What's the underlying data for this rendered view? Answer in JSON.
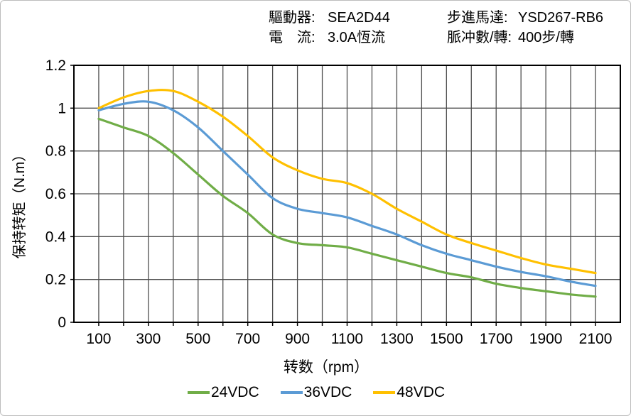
{
  "header": {
    "driver_label": "驅動器:",
    "driver_value": "SEA2D44",
    "current_label": "電　流:",
    "current_value": "3.0A恆流",
    "motor_label": "步進馬達:",
    "motor_value": "YSD267-RB6",
    "pulses_label": "脈冲數/轉:",
    "pulses_value": "400步/轉"
  },
  "chart_data": {
    "type": "line",
    "title": "",
    "xlabel": "转数（rpm）",
    "ylabel": "保持转矩（N.m）",
    "xlim": [
      0,
      2200
    ],
    "ylim": [
      0,
      1.2
    ],
    "grid": true,
    "x_grid_step": 100,
    "y_grid_step": 0.2,
    "x_ticks": [
      100,
      300,
      500,
      700,
      900,
      1100,
      1300,
      1500,
      1700,
      1900,
      2100
    ],
    "x_tick_labels": [
      "100",
      "300",
      "500",
      "700",
      "900",
      "1100",
      "1300",
      "1500",
      "1700",
      "1900",
      "2100"
    ],
    "y_ticks": [
      0,
      0.2,
      0.4,
      0.6,
      0.8,
      1,
      1.2
    ],
    "y_tick_labels": [
      "0",
      "0.2",
      "0.4",
      "0.6",
      "0.8",
      "1",
      "1.2"
    ],
    "legend_position": "bottom",
    "x": [
      100,
      200,
      300,
      400,
      500,
      600,
      700,
      800,
      900,
      1000,
      1100,
      1200,
      1300,
      1400,
      1500,
      1600,
      1700,
      1800,
      1900,
      2000,
      2100
    ],
    "series": [
      {
        "name": "24VDC",
        "color": "#70AD47",
        "values": [
          0.95,
          0.91,
          0.87,
          0.79,
          0.69,
          0.59,
          0.51,
          0.41,
          0.37,
          0.36,
          0.35,
          0.32,
          0.29,
          0.26,
          0.23,
          0.21,
          0.18,
          0.16,
          0.145,
          0.13,
          0.12
        ]
      },
      {
        "name": "36VDC",
        "color": "#5B9BD5",
        "values": [
          0.99,
          1.02,
          1.03,
          0.99,
          0.91,
          0.8,
          0.69,
          0.58,
          0.53,
          0.51,
          0.49,
          0.45,
          0.41,
          0.36,
          0.32,
          0.29,
          0.26,
          0.235,
          0.215,
          0.19,
          0.17
        ]
      },
      {
        "name": "48VDC",
        "color": "#FFC000",
        "values": [
          1.0,
          1.05,
          1.08,
          1.08,
          1.03,
          0.96,
          0.87,
          0.77,
          0.71,
          0.67,
          0.65,
          0.6,
          0.53,
          0.47,
          0.41,
          0.37,
          0.335,
          0.3,
          0.27,
          0.25,
          0.23
        ]
      }
    ],
    "colors": {
      "grid": "#4d4d4d",
      "frame": "#000000",
      "text": "#000000"
    }
  }
}
